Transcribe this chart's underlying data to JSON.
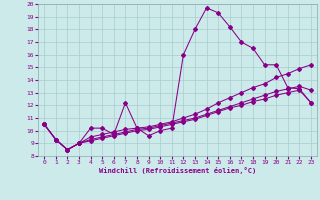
{
  "xlabel": "Windchill (Refroidissement éolien,°C)",
  "bg_color": "#cceaea",
  "line_color": "#880088",
  "grid_color": "#aacccc",
  "xlim": [
    -0.5,
    23.5
  ],
  "ylim": [
    8,
    20
  ],
  "xticks": [
    0,
    1,
    2,
    3,
    4,
    5,
    6,
    7,
    8,
    9,
    10,
    11,
    12,
    13,
    14,
    15,
    16,
    17,
    18,
    19,
    20,
    21,
    22,
    23
  ],
  "yticks": [
    8,
    9,
    10,
    11,
    12,
    13,
    14,
    15,
    16,
    17,
    18,
    19,
    20
  ],
  "series": [
    {
      "x": [
        0,
        1,
        2,
        3,
        4,
        5,
        6,
        7,
        8,
        9,
        10,
        11,
        12,
        13,
        14,
        15,
        16,
        17,
        18,
        19,
        20,
        21,
        22,
        23
      ],
      "y": [
        10.5,
        9.3,
        8.5,
        9.0,
        10.2,
        10.2,
        9.7,
        12.2,
        10.2,
        9.6,
        10.0,
        10.2,
        16.0,
        18.0,
        19.7,
        19.3,
        18.2,
        17.0,
        16.5,
        15.2,
        15.2,
        13.4,
        13.3,
        12.2
      ]
    },
    {
      "x": [
        0,
        1,
        2,
        3,
        4,
        5,
        6,
        7,
        8,
        9,
        10,
        11,
        12,
        13,
        14,
        15,
        16,
        17,
        18,
        19,
        20,
        21,
        22,
        23
      ],
      "y": [
        10.5,
        9.3,
        8.5,
        9.0,
        9.5,
        9.7,
        9.9,
        10.1,
        10.2,
        10.3,
        10.5,
        10.7,
        11.0,
        11.3,
        11.7,
        12.2,
        12.6,
        13.0,
        13.4,
        13.7,
        14.2,
        14.5,
        14.9,
        15.2
      ]
    },
    {
      "x": [
        0,
        1,
        2,
        3,
        4,
        5,
        6,
        7,
        8,
        9,
        10,
        11,
        12,
        13,
        14,
        15,
        16,
        17,
        18,
        19,
        20,
        21,
        22,
        23
      ],
      "y": [
        10.5,
        9.3,
        8.5,
        9.0,
        9.3,
        9.5,
        9.7,
        9.9,
        10.1,
        10.2,
        10.4,
        10.6,
        10.8,
        11.0,
        11.3,
        11.6,
        11.9,
        12.2,
        12.5,
        12.8,
        13.1,
        13.3,
        13.5,
        13.2
      ]
    },
    {
      "x": [
        0,
        1,
        2,
        3,
        4,
        5,
        6,
        7,
        8,
        9,
        10,
        11,
        12,
        13,
        14,
        15,
        16,
        17,
        18,
        19,
        20,
        21,
        22,
        23
      ],
      "y": [
        10.5,
        9.3,
        8.5,
        9.0,
        9.2,
        9.4,
        9.6,
        9.8,
        10.0,
        10.1,
        10.3,
        10.5,
        10.7,
        10.9,
        11.2,
        11.5,
        11.8,
        12.0,
        12.3,
        12.5,
        12.8,
        13.0,
        13.2,
        12.2
      ]
    }
  ]
}
